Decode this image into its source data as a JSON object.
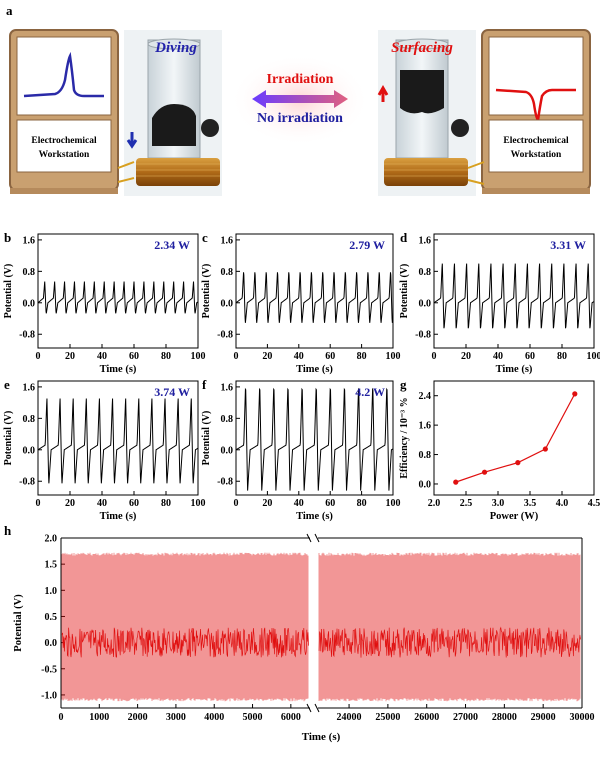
{
  "panel_a": {
    "letter": "a",
    "diving": "Diving",
    "surfacing": "Surfacing",
    "irradiation": "Irradiation",
    "no_irradiation": "No irradiation",
    "workstation_line1": "Electrochemical",
    "workstation_line2": "Workstation",
    "colors": {
      "diving": "#2222aa",
      "surfacing": "#e01010",
      "irradiation": "#e01010",
      "no_irradiation": "#2020a0"
    }
  },
  "chart_data": [
    {
      "id": "b",
      "type": "line",
      "letter": "b",
      "power_label": "2.34 W",
      "xlabel": "Time (s)",
      "ylabel": "Potential (V)",
      "xlim": [
        0,
        100
      ],
      "ylim": [
        -1.15,
        1.75
      ],
      "xticks": [
        "0",
        "20",
        "40",
        "60",
        "80",
        "100"
      ],
      "yticks": [
        "1.6",
        "0.8",
        "0.0",
        "-0.8"
      ],
      "period_s": 6.2,
      "peak_V": 0.55,
      "trough_V": -0.3,
      "baseline_V": 0.0,
      "cycles": 16
    },
    {
      "id": "c",
      "type": "line",
      "letter": "c",
      "power_label": "2.79 W",
      "xlabel": "Time (s)",
      "ylabel": "Potential (V)",
      "xlim": [
        0,
        100
      ],
      "ylim": [
        -1.15,
        1.75
      ],
      "xticks": [
        "0",
        "20",
        "40",
        "60",
        "80",
        "100"
      ],
      "yticks": [
        "1.6",
        "0.8",
        "0.0",
        "-0.8"
      ],
      "period_s": 7.2,
      "peak_V": 0.85,
      "trough_V": -0.55,
      "baseline_V": 0.0,
      "cycles": 14
    },
    {
      "id": "d",
      "type": "line",
      "letter": "d",
      "power_label": "3.31 W",
      "xlabel": "Time (s)",
      "ylabel": "Potential (V)",
      "xlim": [
        0,
        100
      ],
      "ylim": [
        -1.15,
        1.75
      ],
      "xticks": [
        "0",
        "20",
        "40",
        "60",
        "80",
        "100"
      ],
      "yticks": [
        "1.6",
        "0.8",
        "0.0",
        "-0.8"
      ],
      "period_s": 7.6,
      "peak_V": 1.05,
      "trough_V": -0.7,
      "baseline_V": 0.0,
      "cycles": 13
    },
    {
      "id": "e",
      "type": "line",
      "letter": "e",
      "power_label": "3.74 W",
      "xlabel": "Time (s)",
      "ylabel": "Potential (V)",
      "xlim": [
        0,
        100
      ],
      "ylim": [
        -1.15,
        1.75
      ],
      "xticks": [
        "0",
        "20",
        "40",
        "60",
        "80",
        "100"
      ],
      "yticks": [
        "1.6",
        "0.8",
        "0.0",
        "-0.8"
      ],
      "period_s": 8.2,
      "peak_V": 1.35,
      "trough_V": -0.9,
      "baseline_V": 0.0,
      "cycles": 12
    },
    {
      "id": "f",
      "type": "line",
      "letter": "f",
      "power_label": "4.2 W",
      "xlabel": "Time (s)",
      "ylabel": "Potential (V)",
      "xlim": [
        0,
        100
      ],
      "ylim": [
        -1.15,
        1.75
      ],
      "xticks": [
        "0",
        "20",
        "40",
        "60",
        "80",
        "100"
      ],
      "yticks": [
        "1.6",
        "0.8",
        "0.0",
        "-0.8"
      ],
      "period_s": 9.0,
      "peak_V": 1.7,
      "trough_V": -1.05,
      "baseline_V": 0.0,
      "cycles": 11
    },
    {
      "id": "g",
      "type": "line",
      "letter": "g",
      "xlabel": "Power (W)",
      "ylabel": "Efficiency / 10⁻³ %",
      "xlim": [
        2.0,
        4.5
      ],
      "ylim": [
        -0.3,
        2.8
      ],
      "xticks": [
        "2.0",
        "2.5",
        "3.0",
        "3.5",
        "4.0",
        "4.5"
      ],
      "yticks": [
        "2.4",
        "1.6",
        "0.8",
        "0.0"
      ],
      "x": [
        2.34,
        2.79,
        3.31,
        3.74,
        4.2
      ],
      "y": [
        0.05,
        0.32,
        0.58,
        0.95,
        2.45
      ],
      "color": "#e01010"
    },
    {
      "id": "h",
      "type": "line",
      "letter": "h",
      "xlabel": "Time (s)",
      "ylabel": "Potential (V)",
      "ylim": [
        -1.25,
        2.0
      ],
      "yticks": [
        "2.0",
        "1.5",
        "1.0",
        "0.5",
        "0.0",
        "-0.5",
        "-1.0"
      ],
      "segments": [
        {
          "xlim": [
            0,
            6500
          ],
          "xticks": [
            "0",
            "1000",
            "2000",
            "3000",
            "4000",
            "5000",
            "6000"
          ]
        },
        {
          "xlim": [
            23200,
            30000
          ],
          "xticks": [
            "24000",
            "25000",
            "26000",
            "27000",
            "28000",
            "29000",
            "30000"
          ]
        }
      ],
      "peak_V": 1.72,
      "trough_V": -1.12,
      "color": "#e01010"
    }
  ]
}
